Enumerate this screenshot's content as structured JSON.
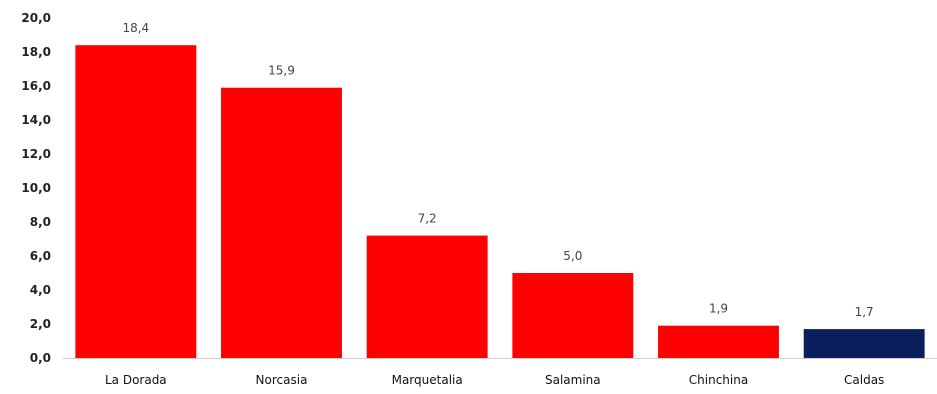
{
  "chart_data": {
    "type": "bar",
    "title": "",
    "xlabel": "",
    "ylabel": "",
    "ylim": [
      0,
      20
    ],
    "ytick_step": 2,
    "ytick_labels": [
      "0,0",
      "2,0",
      "4,0",
      "6,0",
      "8,0",
      "10,0",
      "12,0",
      "14,0",
      "16,0",
      "18,0",
      "20,0"
    ],
    "grid": false,
    "legend": "none",
    "categories": [
      "La Dorada",
      "Norcasia",
      "Marquetalia",
      "Salamina",
      "Chinchina",
      "Caldas"
    ],
    "values": [
      18.4,
      15.9,
      7.2,
      5.0,
      1.9,
      1.7
    ],
    "data_labels": [
      "18,4",
      "15,9",
      "7,2",
      "5,0",
      "1,9",
      "1,7"
    ],
    "bar_colors": [
      "#ff0000",
      "#ff0000",
      "#ff0000",
      "#ff0000",
      "#ff0000",
      "#0b1f5c"
    ]
  }
}
